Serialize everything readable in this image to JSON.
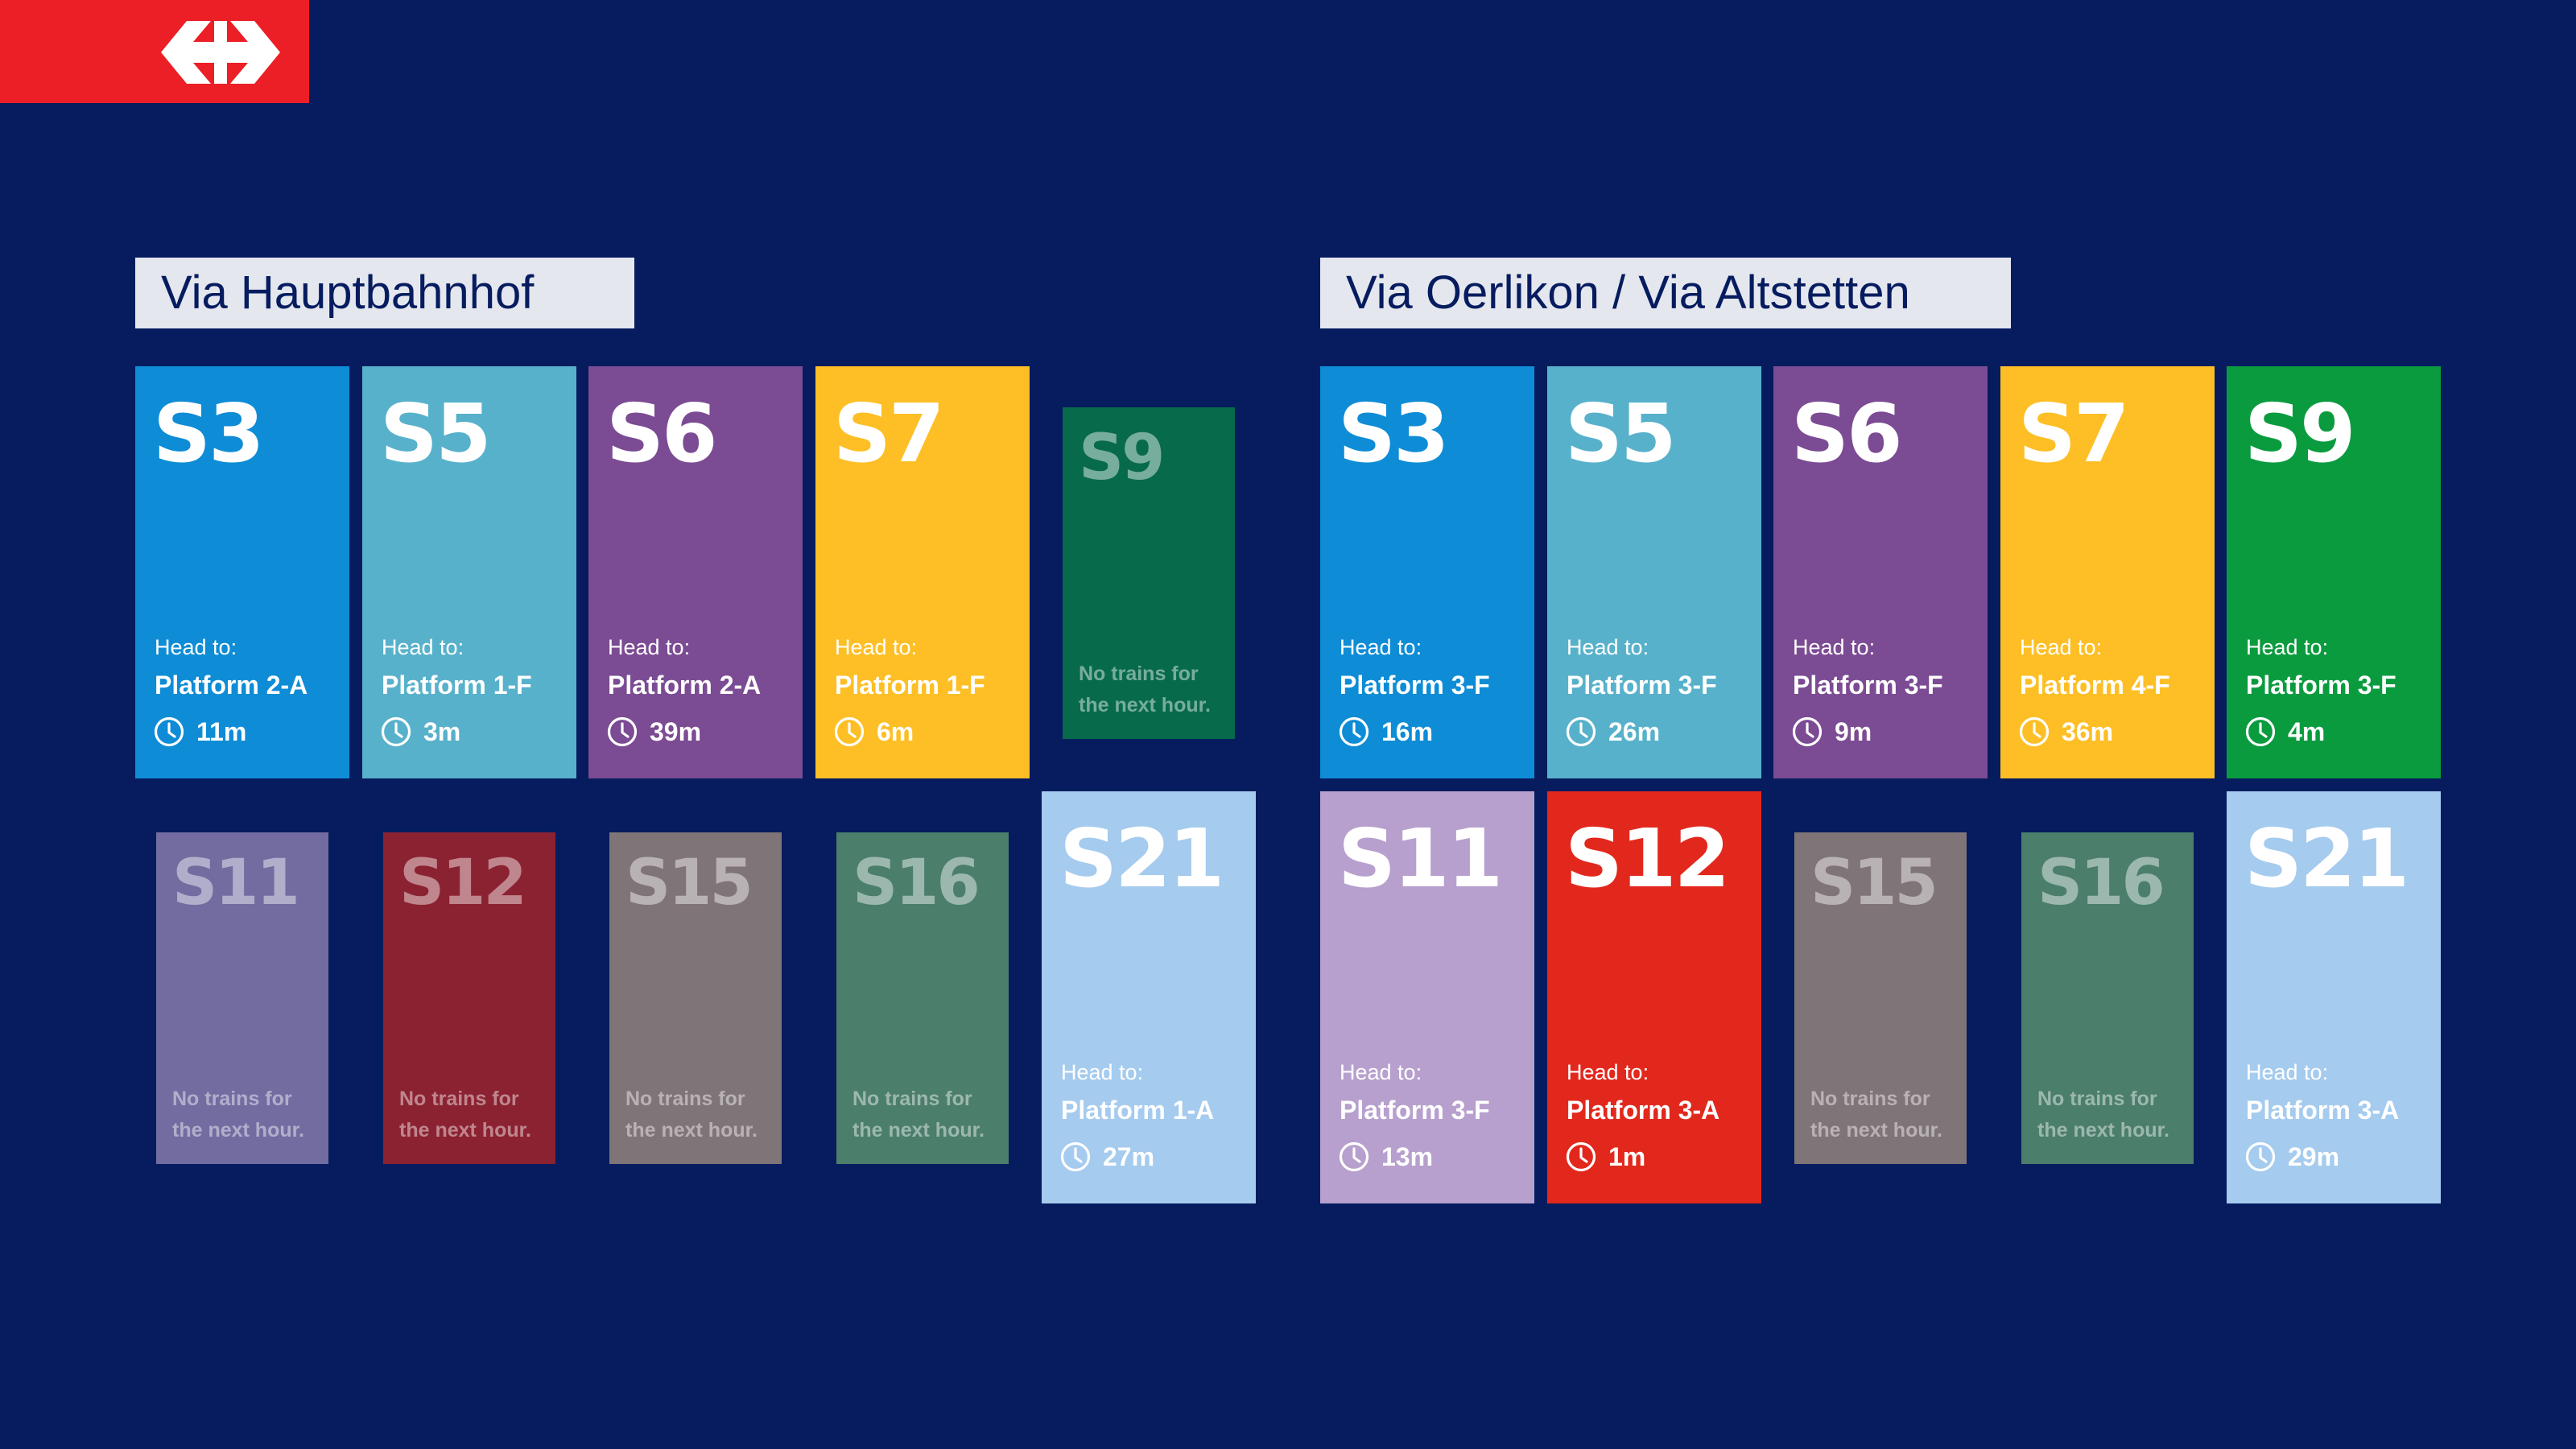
{
  "logo": {
    "icon": "sbb-logo-icon",
    "color": "#eb1f25"
  },
  "sections": [
    {
      "title": "Via Hauptbahnhof",
      "tiles": [
        {
          "line": "S3",
          "color": "#0e8cd6",
          "active": true,
          "head_label": "Head to:",
          "platform": "Platform 2-A",
          "time": "11m"
        },
        {
          "line": "S5",
          "color": "#58b1cb",
          "active": true,
          "head_label": "Head to:",
          "platform": "Platform 1-F",
          "time": "3m"
        },
        {
          "line": "S6",
          "color": "#7b4b93",
          "active": true,
          "head_label": "Head to:",
          "platform": "Platform 2-A",
          "time": "39m"
        },
        {
          "line": "S7",
          "color": "#fdbf25",
          "active": true,
          "head_label": "Head to:",
          "platform": "Platform 1-F",
          "time": "6m"
        },
        {
          "line": "S9",
          "color": "#076a4b",
          "active": false,
          "no_trains_1": "No trains for",
          "no_trains_2": "the next hour."
        },
        {
          "line": "S11",
          "color": "#726ca1",
          "active": false,
          "no_trains_1": "No trains for",
          "no_trains_2": "the next hour."
        },
        {
          "line": "S12",
          "color": "#8b2232",
          "active": false,
          "no_trains_1": "No trains for",
          "no_trains_2": "the next hour."
        },
        {
          "line": "S15",
          "color": "#7f7478",
          "active": false,
          "no_trains_1": "No trains for",
          "no_trains_2": "the next hour."
        },
        {
          "line": "S16",
          "color": "#4b7e6b",
          "active": false,
          "no_trains_1": "No trains for",
          "no_trains_2": "the next hour."
        },
        {
          "line": "S21",
          "color": "#a5cbee",
          "active": true,
          "head_label": "Head to:",
          "platform": "Platform 1-A",
          "time": "27m"
        }
      ]
    },
    {
      "title": "Via Oerlikon / Via Altstetten",
      "tiles": [
        {
          "line": "S3",
          "color": "#0e8cd6",
          "active": true,
          "head_label": "Head to:",
          "platform": "Platform 3-F",
          "time": "16m"
        },
        {
          "line": "S5",
          "color": "#58b1cb",
          "active": true,
          "head_label": "Head to:",
          "platform": "Platform 3-F",
          "time": "26m"
        },
        {
          "line": "S6",
          "color": "#7b4b93",
          "active": true,
          "head_label": "Head to:",
          "platform": "Platform 3-F",
          "time": "9m"
        },
        {
          "line": "S7",
          "color": "#fdbf25",
          "active": true,
          "head_label": "Head to:",
          "platform": "Platform 4-F",
          "time": "36m"
        },
        {
          "line": "S9",
          "color": "#0a9b3f",
          "active": true,
          "head_label": "Head to:",
          "platform": "Platform 3-F",
          "time": "4m"
        },
        {
          "line": "S11",
          "color": "#b7a0cd",
          "active": true,
          "head_label": "Head to:",
          "platform": "Platform 3-F",
          "time": "13m"
        },
        {
          "line": "S12",
          "color": "#e2281d",
          "active": true,
          "head_label": "Head to:",
          "platform": "Platform 3-A",
          "time": "1m"
        },
        {
          "line": "S15",
          "color": "#7f7478",
          "active": false,
          "no_trains_1": "No trains for",
          "no_trains_2": "the next hour."
        },
        {
          "line": "S16",
          "color": "#4b7e6b",
          "active": false,
          "no_trains_1": "No trains for",
          "no_trains_2": "the next hour."
        },
        {
          "line": "S21",
          "color": "#a5cbee",
          "active": true,
          "head_label": "Head to:",
          "platform": "Platform 3-A",
          "time": "29m"
        }
      ]
    }
  ]
}
